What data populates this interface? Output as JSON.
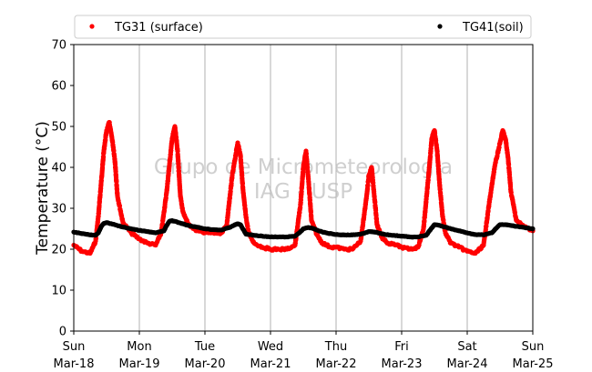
{
  "chart_data": {
    "type": "scatter",
    "title": "",
    "xlabel": "",
    "ylabel": "Temperature (°C)",
    "ylim": [
      0,
      70
    ],
    "yticks": [
      0,
      10,
      20,
      30,
      40,
      50,
      60,
      70
    ],
    "xlim": [
      "2018-03-18",
      "2018-03-25"
    ],
    "x_ticks": [
      {
        "day": "Sun",
        "date": "Mar-18"
      },
      {
        "day": "Mon",
        "date": "Mar-19"
      },
      {
        "day": "Tue",
        "date": "Mar-20"
      },
      {
        "day": "Wed",
        "date": "Mar-21"
      },
      {
        "day": "Thu",
        "date": "Mar-22"
      },
      {
        "day": "Fri",
        "date": "Mar-23"
      },
      {
        "day": "Sat",
        "date": "Mar-24"
      },
      {
        "day": "Sun",
        "date": "Mar-25"
      }
    ],
    "grid": "vertical",
    "legend_position": "top",
    "watermark": [
      "Grupo de Micrometeorologia",
      "IAG - USP"
    ],
    "series": [
      {
        "name": "TG31 (surface)",
        "color": "#ff0000",
        "x": [
          "Mar-18 00:00",
          "Mar-18 03:00",
          "Mar-18 06:00",
          "Mar-18 08:00",
          "Mar-18 09:00",
          "Mar-18 10:00",
          "Mar-18 11:00",
          "Mar-18 12:00",
          "Mar-18 13:00",
          "Mar-18 14:00",
          "Mar-18 15:00",
          "Mar-18 16:00",
          "Mar-18 18:00",
          "Mar-18 21:00",
          "Mar-19 00:00",
          "Mar-19 03:00",
          "Mar-19 06:00",
          "Mar-19 08:00",
          "Mar-19 10:00",
          "Mar-19 12:00",
          "Mar-19 13:00",
          "Mar-19 14:00",
          "Mar-19 15:00",
          "Mar-19 16:00",
          "Mar-19 18:00",
          "Mar-19 21:00",
          "Mar-20 00:00",
          "Mar-20 03:00",
          "Mar-20 06:00",
          "Mar-20 08:00",
          "Mar-20 10:00",
          "Mar-20 12:00",
          "Mar-20 13:00",
          "Mar-20 14:00",
          "Mar-20 15:00",
          "Mar-20 16:00",
          "Mar-20 18:00",
          "Mar-20 21:00",
          "Mar-21 00:00",
          "Mar-21 03:00",
          "Mar-21 06:00",
          "Mar-21 09:00",
          "Mar-21 11:00",
          "Mar-21 12:00",
          "Mar-21 13:00",
          "Mar-21 14:00",
          "Mar-21 15:00",
          "Mar-21 17:00",
          "Mar-21 19:00",
          "Mar-21 22:00",
          "Mar-22 00:00",
          "Mar-22 03:00",
          "Mar-22 06:00",
          "Mar-22 09:00",
          "Mar-22 11:00",
          "Mar-22 12:00",
          "Mar-22 13:00",
          "Mar-22 14:00",
          "Mar-22 15:00",
          "Mar-22 17:00",
          "Mar-22 19:00",
          "Mar-22 22:00",
          "Mar-23 00:00",
          "Mar-23 03:00",
          "Mar-23 06:00",
          "Mar-23 08:00",
          "Mar-23 10:00",
          "Mar-23 11:00",
          "Mar-23 12:00",
          "Mar-23 13:00",
          "Mar-23 14:00",
          "Mar-23 15:00",
          "Mar-23 16:00",
          "Mar-23 18:00",
          "Mar-23 21:00",
          "Mar-24 00:00",
          "Mar-24 03:00",
          "Mar-24 06:00",
          "Mar-24 08:00",
          "Mar-24 10:00",
          "Mar-24 12:00",
          "Mar-24 13:00",
          "Mar-24 14:00",
          "Mar-24 15:00",
          "Mar-24 16:00",
          "Mar-24 18:00",
          "Mar-24 21:00",
          "Mar-25 00:00"
        ],
        "y": [
          21,
          19.5,
          19,
          22,
          28,
          36,
          44,
          49,
          51,
          47,
          42,
          33,
          26.5,
          24,
          22.5,
          21.5,
          21,
          24,
          34,
          47,
          50,
          44,
          33,
          29,
          26,
          24.5,
          24,
          24,
          24,
          26,
          38,
          46,
          43,
          34,
          28,
          24,
          21.5,
          20.5,
          20,
          20,
          20,
          21,
          31,
          40,
          44,
          36,
          27,
          23.5,
          21.5,
          20.5,
          20.5,
          20,
          20,
          22,
          32,
          38,
          40,
          33,
          26,
          22.5,
          21.5,
          21,
          20.5,
          20,
          20.5,
          25,
          39,
          47,
          49,
          44,
          35,
          28,
          24,
          21.5,
          20.5,
          19.5,
          19,
          21,
          31,
          40,
          46,
          49,
          47,
          42,
          34,
          27,
          25.5,
          24.5
        ]
      },
      {
        "name": "TG41(soil)",
        "color": "#000000",
        "x": [
          "Mar-18 00:00",
          "Mar-18 06:00",
          "Mar-18 08:00",
          "Mar-18 09:00",
          "Mar-18 10:00",
          "Mar-18 11:00",
          "Mar-18 12:00",
          "Mar-18 15:00",
          "Mar-18 18:00",
          "Mar-18 21:00",
          "Mar-19 00:00",
          "Mar-19 03:00",
          "Mar-19 06:00",
          "Mar-19 09:00",
          "Mar-19 10:00",
          "Mar-19 11:00",
          "Mar-19 12:00",
          "Mar-19 15:00",
          "Mar-19 18:00",
          "Mar-19 21:00",
          "Mar-20 00:00",
          "Mar-20 03:00",
          "Mar-20 06:00",
          "Mar-20 09:00",
          "Mar-20 11:00",
          "Mar-20 12:00",
          "Mar-20 13:00",
          "Mar-20 15:00",
          "Mar-20 18:00",
          "Mar-20 21:00",
          "Mar-21 00:00",
          "Mar-21 03:00",
          "Mar-21 06:00",
          "Mar-21 09:00",
          "Mar-21 11:00",
          "Mar-21 12:00",
          "Mar-21 14:00",
          "Mar-21 16:00",
          "Mar-21 18:00",
          "Mar-21 21:00",
          "Mar-22 00:00",
          "Mar-22 03:00",
          "Mar-22 06:00",
          "Mar-22 09:00",
          "Mar-22 11:00",
          "Mar-22 12:00",
          "Mar-22 14:00",
          "Mar-22 16:00",
          "Mar-22 18:00",
          "Mar-22 21:00",
          "Mar-23 00:00",
          "Mar-23 03:00",
          "Mar-23 06:00",
          "Mar-23 09:00",
          "Mar-23 11:00",
          "Mar-23 12:00",
          "Mar-23 14:00",
          "Mar-23 16:00",
          "Mar-23 18:00",
          "Mar-23 21:00",
          "Mar-24 00:00",
          "Mar-24 03:00",
          "Mar-24 06:00",
          "Mar-24 09:00",
          "Mar-24 11:00",
          "Mar-24 12:00",
          "Mar-24 14:00",
          "Mar-24 16:00",
          "Mar-24 18:00",
          "Mar-24 21:00",
          "Mar-25 00:00"
        ],
        "y": [
          24.2,
          23.5,
          23.4,
          24,
          25.5,
          26.3,
          26.5,
          26,
          25.4,
          25,
          24.6,
          24.3,
          24,
          24.5,
          25.8,
          26.8,
          27,
          26.4,
          25.8,
          25.4,
          25,
          24.8,
          24.7,
          25.3,
          26,
          26.2,
          26,
          23.7,
          23.4,
          23.2,
          23,
          23,
          23,
          23.2,
          24.3,
          25,
          25.3,
          25,
          24.4,
          23.9,
          23.6,
          23.5,
          23.5,
          23.7,
          24.1,
          24.3,
          24.2,
          23.9,
          23.6,
          23.4,
          23.2,
          23,
          23,
          23.4,
          25.2,
          26,
          25.8,
          25.4,
          25,
          24.5,
          24,
          23.6,
          23.5,
          24,
          25.4,
          26,
          26,
          25.8,
          25.6,
          25.3,
          25
        ]
      }
    ]
  }
}
